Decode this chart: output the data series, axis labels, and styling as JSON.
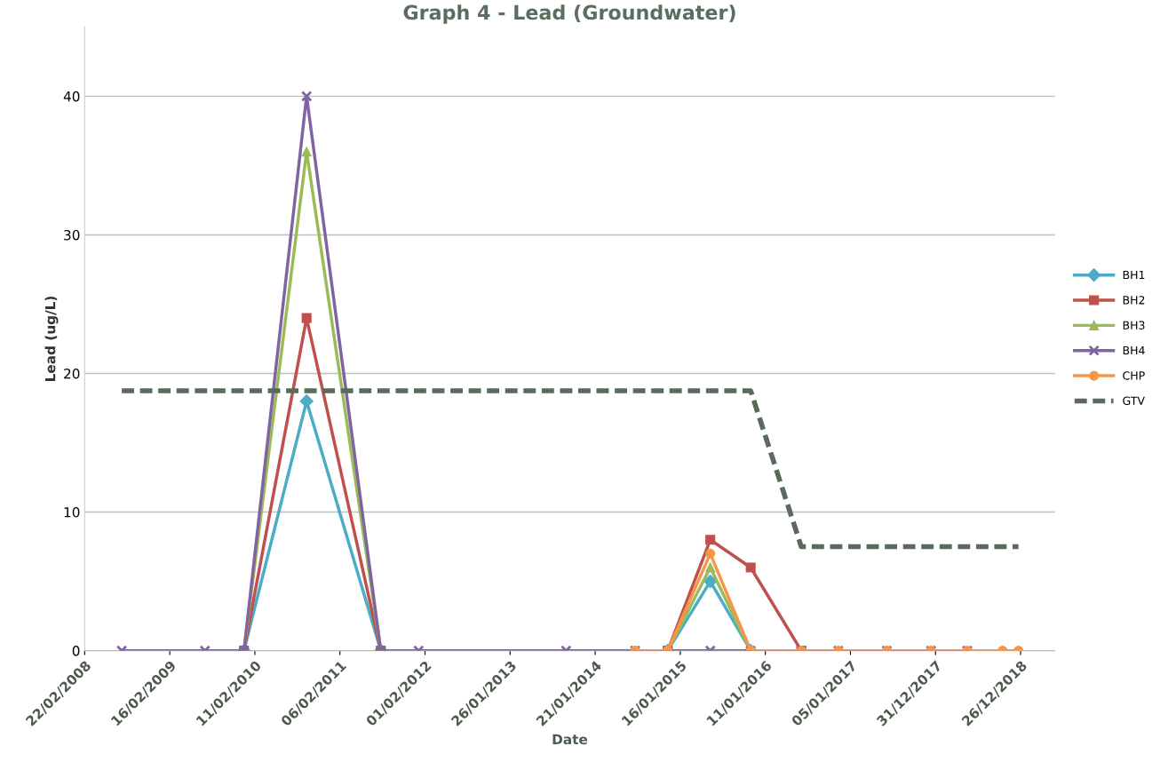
{
  "chart_data": {
    "type": "line",
    "title": "Graph 4 - Lead (Groundwater)",
    "xlabel": "Date",
    "ylabel": "Lead (ug/L)",
    "xlim": [
      "2008-02-22",
      "2019-05-20"
    ],
    "xticks": [
      {
        "value": "2008-02-22",
        "label": "22/02/2008"
      },
      {
        "value": "2009-02-16",
        "label": "16/02/2009"
      },
      {
        "value": "2010-02-11",
        "label": "11/02/2010"
      },
      {
        "value": "2011-02-06",
        "label": "06/02/2011"
      },
      {
        "value": "2012-02-01",
        "label": "01/02/2012"
      },
      {
        "value": "2013-01-26",
        "label": "26/01/2013"
      },
      {
        "value": "2014-01-21",
        "label": "21/01/2014"
      },
      {
        "value": "2015-01-16",
        "label": "16/01/2015"
      },
      {
        "value": "2016-01-11",
        "label": "11/01/2016"
      },
      {
        "value": "2017-01-05",
        "label": "05/01/2017"
      },
      {
        "value": "2017-12-31",
        "label": "31/12/2017"
      },
      {
        "value": "2018-12-26",
        "label": "26/12/2018"
      }
    ],
    "ylim": [
      0,
      45
    ],
    "yticks": [
      0,
      10,
      20,
      30,
      40
    ],
    "grid": "y",
    "legend": "right",
    "x": [
      "2008-07-28",
      "2009-07-15",
      "2009-12-27",
      "2010-09-18",
      "2011-07-29",
      "2012-01-05",
      "2013-09-20",
      "2014-07-09",
      "2014-11-24",
      "2015-05-23",
      "2015-11-10",
      "2016-06-11",
      "2016-11-15",
      "2017-06-08",
      "2017-12-12",
      "2018-05-14"
    ],
    "series": [
      {
        "name": "BH1",
        "color": "#4bacc6",
        "marker": "diamond",
        "values": [
          null,
          null,
          0,
          18,
          0,
          null,
          null,
          null,
          0,
          5,
          0,
          null,
          null,
          null,
          null,
          null
        ]
      },
      {
        "name": "BH2",
        "color": "#c0504d",
        "marker": "square",
        "values": [
          null,
          null,
          0,
          24,
          0,
          null,
          null,
          null,
          0,
          8,
          6,
          0,
          null,
          null,
          null,
          null
        ]
      },
      {
        "name": "BH3",
        "color": "#9bbb59",
        "marker": "triangle",
        "values": [
          null,
          null,
          0,
          36,
          0,
          null,
          null,
          null,
          0,
          6,
          0,
          null,
          null,
          null,
          null,
          null
        ]
      },
      {
        "name": "BH4",
        "color": "#8064a2",
        "marker": "cross",
        "values": [
          0,
          0,
          0,
          40,
          0,
          0,
          0,
          0,
          0,
          0,
          0,
          0,
          0,
          0,
          0,
          0
        ]
      },
      {
        "name": "CHP",
        "color": "#f79646",
        "marker": "circle",
        "x": [
          "2014-07-09",
          "2014-11-24",
          "2015-05-23",
          "2015-11-10",
          "2016-06-11",
          "2016-11-15",
          "2017-06-08",
          "2017-12-12",
          "2018-05-14",
          "2018-10-11",
          "2018-12-17"
        ],
        "values": [
          0,
          0,
          7,
          0,
          0,
          0,
          0,
          0,
          0,
          0,
          0
        ]
      },
      {
        "name": "GTV",
        "color": "#5a6b5c",
        "marker": "none",
        "line_style": "dashed",
        "x": [
          "2008-07-28",
          "2015-11-10",
          "2016-06-11",
          "2018-12-17"
        ],
        "values": [
          18.75,
          18.75,
          7.5,
          7.5
        ]
      }
    ]
  }
}
